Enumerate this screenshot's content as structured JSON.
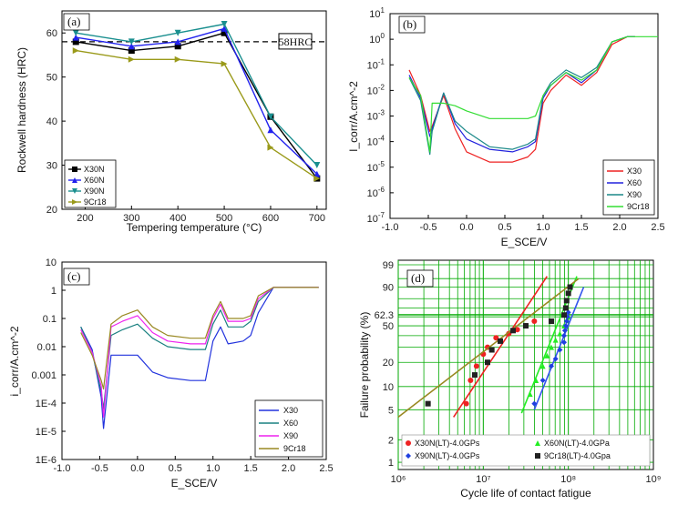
{
  "figure": {
    "colors": {
      "X30N": "#000000",
      "X60N": "#2222ee",
      "X90N": "#1a8f8f",
      "9Cr18": "#9a9a1a",
      "X30": "#ee2222",
      "X60": "#2222dd",
      "X90": "#1a8888",
      "9Cr18_b": "#33dd33",
      "X30_c": "#2233dd",
      "X60_c": "#1a8080",
      "X90_c": "#ee22ee",
      "9Cr18_c": "#998822",
      "X30N_d": "#ee2222",
      "X60N_d": "#22ee22",
      "X90N_d": "#1f3fe0",
      "9Cr18_d": "#222222",
      "grid_d": "#00aa00"
    }
  },
  "chart_data": [
    {
      "panel": "(a)",
      "type": "line",
      "xlabel": "Tempering temperature (°C)",
      "ylabel": "Rockwell hardness (HRC)",
      "xlim": [
        150,
        720
      ],
      "ylim": [
        20,
        65
      ],
      "xticks": [
        "200",
        "300",
        "400",
        "500",
        "600",
        "700"
      ],
      "yticks": [
        "20",
        "30",
        "40",
        "50",
        "60"
      ],
      "annotation": "58HRC",
      "reference_line": 58,
      "legend_position": "bottom-left",
      "series": [
        {
          "name": "X30N",
          "marker": "square",
          "x": [
            180,
            300,
            400,
            500,
            600,
            700
          ],
          "y": [
            58,
            56,
            57,
            60,
            41,
            27
          ]
        },
        {
          "name": "X60N",
          "marker": "triangle-up",
          "x": [
            180,
            300,
            400,
            500,
            600,
            700
          ],
          "y": [
            59,
            57,
            58,
            61,
            38,
            28
          ]
        },
        {
          "name": "X90N",
          "marker": "triangle-down",
          "x": [
            180,
            300,
            400,
            500,
            600,
            700
          ],
          "y": [
            60,
            58,
            60,
            62,
            41,
            30
          ]
        },
        {
          "name": "9Cr18",
          "marker": "triangle-right",
          "x": [
            180,
            300,
            400,
            500,
            600,
            700
          ],
          "y": [
            56,
            54,
            54,
            53,
            34,
            27
          ]
        }
      ]
    },
    {
      "panel": "(b)",
      "type": "line",
      "xlabel": "E_SCE/V",
      "ylabel": "I_corr/A.cm^-2",
      "yscale": "log",
      "xlim": [
        -1.0,
        2.5
      ],
      "ylim_exp": [
        -7,
        1
      ],
      "xticks": [
        "-1.0",
        "-0.5",
        "0.0",
        "0.5",
        "1.0",
        "1.5",
        "2.0",
        "2.5"
      ],
      "yticks": [
        "10-7",
        "10-6",
        "10-5",
        "10-4",
        "10-3",
        "10-2",
        "10-1",
        "100",
        "101"
      ],
      "legend_position": "bottom-right",
      "series": [
        {
          "name": "X30",
          "x": [
            -0.75,
            -0.6,
            -0.48,
            -0.45,
            -0.3,
            -0.15,
            0.0,
            0.3,
            0.6,
            0.8,
            0.9,
            1.0,
            1.1,
            1.3,
            1.5,
            1.7,
            1.9,
            2.1,
            2.2
          ],
          "log_y": [
            -1.2,
            -2.2,
            -3.6,
            -3.4,
            -2.2,
            -3.5,
            -4.4,
            -4.8,
            -4.8,
            -4.6,
            -4.3,
            -2.5,
            -2.0,
            -1.4,
            -1.8,
            -1.3,
            -0.2,
            0.1,
            0.1
          ]
        },
        {
          "name": "X60",
          "x": [
            -0.75,
            -0.6,
            -0.48,
            -0.45,
            -0.3,
            -0.15,
            0.0,
            0.3,
            0.6,
            0.8,
            0.9,
            1.0,
            1.1,
            1.3,
            1.5,
            1.7,
            1.9,
            2.1,
            2.2
          ],
          "log_y": [
            -1.4,
            -2.3,
            -3.8,
            -3.5,
            -2.1,
            -3.3,
            -3.9,
            -4.3,
            -4.4,
            -4.2,
            -4.0,
            -2.3,
            -1.8,
            -1.3,
            -1.7,
            -1.2,
            -0.1,
            0.1,
            0.1
          ]
        },
        {
          "name": "X90",
          "x": [
            -0.75,
            -0.6,
            -0.48,
            -0.45,
            -0.3,
            -0.15,
            0.0,
            0.3,
            0.6,
            0.8,
            0.9,
            1.0,
            1.1,
            1.3,
            1.5,
            1.7,
            1.9,
            2.1,
            2.2
          ],
          "log_y": [
            -1.5,
            -2.4,
            -4.5,
            -3.6,
            -2.1,
            -3.2,
            -3.6,
            -4.2,
            -4.3,
            -4.1,
            -3.9,
            -2.2,
            -1.7,
            -1.2,
            -1.5,
            -1.1,
            -0.1,
            0.1,
            0.1
          ]
        },
        {
          "name": "9Cr18",
          "x": [
            -0.75,
            -0.6,
            -0.48,
            -0.45,
            -0.3,
            -0.15,
            0.0,
            0.3,
            0.6,
            0.8,
            0.9,
            1.0,
            1.1,
            1.3,
            1.5,
            1.7,
            1.9,
            2.1,
            2.5
          ],
          "log_y": [
            -1.5,
            -2.2,
            -4.4,
            -2.5,
            -2.5,
            -2.6,
            -2.8,
            -3.1,
            -3.1,
            -3.1,
            -3.0,
            -2.2,
            -1.8,
            -1.3,
            -1.6,
            -1.2,
            -0.1,
            0.1,
            0.1
          ]
        }
      ]
    },
    {
      "panel": "(c)",
      "type": "line",
      "xlabel": "E_SCE/V",
      "ylabel": "i_corr/A.cm^-2",
      "yscale": "log",
      "xlim": [
        -1.0,
        2.5
      ],
      "ylim_exp": [
        -6,
        1
      ],
      "xticks": [
        "-1.0",
        "-0.5",
        "0.0",
        "0.5",
        "1.0",
        "1.5",
        "2.0",
        "2.5"
      ],
      "yticks": [
        "1E-6",
        "1E-5",
        "1E-4",
        "0.001",
        "0.01",
        "0.1",
        "1",
        "10"
      ],
      "legend_position": "bottom-right",
      "series": [
        {
          "name": "X30",
          "x": [
            -0.75,
            -0.6,
            -0.48,
            -0.45,
            -0.35,
            -0.2,
            0.0,
            0.2,
            0.4,
            0.7,
            0.9,
            1.0,
            1.1,
            1.2,
            1.4,
            1.5,
            1.6,
            1.8,
            2.0,
            2.4
          ],
          "log_y": [
            -1.3,
            -2.1,
            -3.8,
            -4.9,
            -2.3,
            -2.3,
            -2.3,
            -2.9,
            -3.1,
            -3.2,
            -3.2,
            -1.8,
            -1.3,
            -1.9,
            -1.8,
            -1.6,
            -0.8,
            0.1,
            0.1,
            0.1
          ]
        },
        {
          "name": "X60",
          "x": [
            -0.75,
            -0.6,
            -0.48,
            -0.45,
            -0.35,
            -0.2,
            0.0,
            0.2,
            0.4,
            0.7,
            0.9,
            1.0,
            1.1,
            1.2,
            1.4,
            1.5,
            1.6,
            1.8,
            2.0,
            2.4
          ],
          "log_y": [
            -1.3,
            -2.2,
            -3.6,
            -4.2,
            -1.6,
            -1.4,
            -1.2,
            -1.7,
            -2.0,
            -2.1,
            -2.1,
            -1.2,
            -0.7,
            -1.3,
            -1.3,
            -1.1,
            -0.4,
            0.1,
            0.1,
            0.1
          ]
        },
        {
          "name": "X90",
          "x": [
            -0.75,
            -0.6,
            -0.48,
            -0.45,
            -0.35,
            -0.2,
            0.0,
            0.2,
            0.4,
            0.7,
            0.9,
            1.0,
            1.1,
            1.2,
            1.4,
            1.5,
            1.6,
            1.8,
            2.0,
            2.4
          ],
          "log_y": [
            -1.4,
            -2.2,
            -3.4,
            -4.5,
            -1.3,
            -1.1,
            -0.9,
            -1.5,
            -1.8,
            -1.9,
            -1.9,
            -1.0,
            -0.5,
            -1.1,
            -1.1,
            -1.0,
            -0.3,
            0.1,
            0.1,
            0.1
          ]
        },
        {
          "name": "9Cr18",
          "x": [
            -0.75,
            -0.6,
            -0.48,
            -0.45,
            -0.35,
            -0.2,
            0.0,
            0.2,
            0.4,
            0.7,
            0.9,
            1.0,
            1.1,
            1.2,
            1.4,
            1.5,
            1.6,
            1.8,
            2.0,
            2.4
          ],
          "log_y": [
            -1.5,
            -2.3,
            -3.2,
            -3.5,
            -1.2,
            -0.9,
            -0.7,
            -1.3,
            -1.6,
            -1.7,
            -1.7,
            -0.9,
            -0.4,
            -1.0,
            -1.0,
            -0.9,
            -0.2,
            0.1,
            0.1,
            0.1
          ]
        }
      ]
    },
    {
      "panel": "(d)",
      "type": "scatter",
      "xlabel": "Cycle life of contact fatigue",
      "ylabel": "Failure probability (%)",
      "xscale": "log",
      "yscale": "weibull",
      "xlim_exp": [
        6,
        9
      ],
      "xticks": [
        "10⁶",
        "10⁷",
        "10⁸",
        "10⁹"
      ],
      "yticks": [
        "1",
        "2",
        "5",
        "10",
        "20",
        "50",
        "62.3",
        "90",
        "99"
      ],
      "reference_line": 62.3,
      "legend_position": "bottom",
      "series": [
        {
          "name": "X30N(LT)-4.0GPs",
          "marker": "circle",
          "log_x": [
            6.8,
            6.85,
            6.92,
            7.0,
            7.05,
            7.15,
            7.3,
            7.4,
            7.5,
            7.6
          ],
          "y": [
            6,
            12,
            18,
            25,
            30,
            38,
            42,
            46,
            50,
            55
          ],
          "fit_log_x": [
            6.65,
            7.75
          ],
          "fit_y": [
            4.0,
            96.0
          ]
        },
        {
          "name": "X60N(LT)-4.0GPa",
          "marker": "triangle-up",
          "log_x": [
            7.55,
            7.62,
            7.7,
            7.75,
            7.8,
            7.85,
            7.9,
            7.95,
            8.0
          ],
          "y": [
            8,
            12,
            18,
            24,
            30,
            36,
            42,
            50,
            60
          ],
          "fit_log_x": [
            7.45,
            8.1
          ],
          "fit_y": [
            4.5,
            96.0
          ]
        },
        {
          "name": "X90N(LT)-4.0GPs",
          "marker": "diamond",
          "log_x": [
            7.6,
            7.7,
            7.8,
            7.85,
            7.9,
            7.95,
            7.95,
            7.96,
            7.97,
            7.98,
            7.99,
            8.0
          ],
          "y": [
            6,
            12,
            18,
            22,
            28,
            34,
            40,
            45,
            50,
            55,
            60,
            65
          ],
          "fit_log_x": [
            7.6,
            8.18
          ],
          "fit_y": [
            5.0,
            90.0
          ]
        },
        {
          "name": "9Cr18(LT)-4.0Gpa",
          "marker": "square",
          "log_x": [
            6.35,
            6.9,
            7.05,
            7.1,
            7.2,
            7.35,
            7.5,
            7.8,
            7.95,
            7.97,
            7.98,
            8.0,
            8.02
          ],
          "y": [
            6,
            14,
            20,
            28,
            35,
            45,
            50,
            55,
            62,
            70,
            78,
            85,
            90
          ],
          "fit_log_x": [
            6.0,
            8.12
          ],
          "fit_y": [
            4.0,
            95.0
          ]
        }
      ]
    }
  ]
}
